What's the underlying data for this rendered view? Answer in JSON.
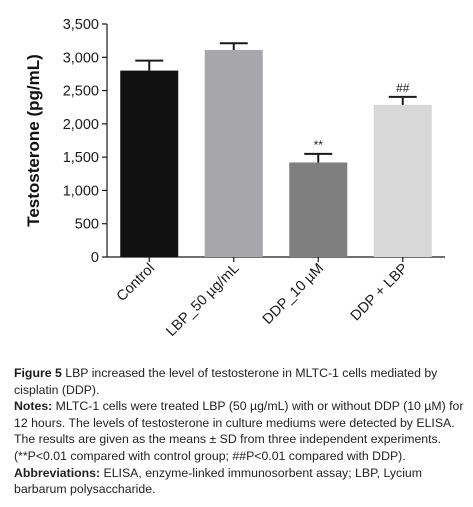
{
  "chart_data": {
    "type": "bar",
    "categories": [
      "Control",
      "LBP_50 µg/mL",
      "DDP_10 µM",
      "DDP + LBP"
    ],
    "values": [
      2800,
      3110,
      1420,
      2285
    ],
    "errors": [
      150,
      100,
      130,
      120
    ],
    "annotations": [
      "",
      "",
      "**",
      "##"
    ],
    "bar_colors": [
      "#111111",
      "#a6a6ab",
      "#7f7f7f",
      "#d8d8d8"
    ],
    "ylabel": "Testosterone (pg/mL)",
    "ylim": [
      0,
      3500
    ],
    "yticks": [
      0,
      500,
      1000,
      1500,
      2000,
      2500,
      3000,
      3500
    ],
    "ytick_labels": [
      "0",
      "500",
      "1,000",
      "1,500",
      "2,000",
      "2,500",
      "3,000",
      "3,500"
    ],
    "grid": false
  },
  "caption": {
    "figure_label": "Figure 5",
    "figure_text": " LBP increased the level of testosterone in MLTC-1 cells mediated by cisplatin (DDP).",
    "notes_label": "Notes:",
    "notes_text": " MLTC-1 cells were treated LBP (50 µg/mL) with or without DDP (10 µM) for 12 hours. The levels of testosterone in culture mediums were detected by ELISA. The results are given as the means ± SD from three independent experiments. (**P<0.01 compared with control group; ##P<0.01 compared with DDP).",
    "abbreviations_label": "Abbreviations:",
    "abbreviations_text": " ELISA, enzyme-linked immunosorbent assay; LBP, Lycium barbarum polysaccharide."
  }
}
